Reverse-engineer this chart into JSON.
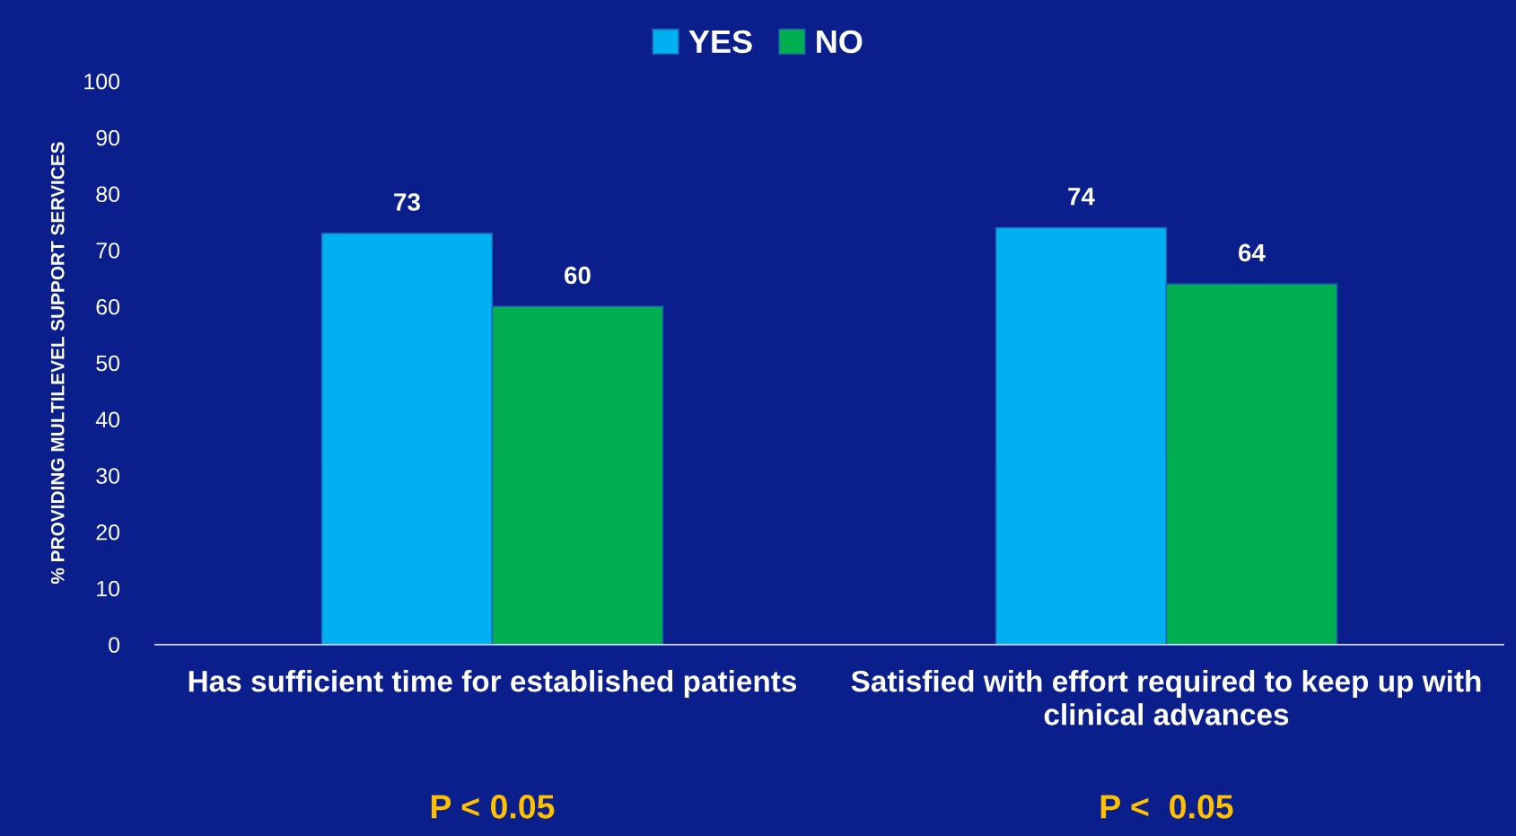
{
  "chart_data": {
    "type": "bar",
    "ylabel": "% PROVIDING MULTILEVEL SUPPORT SERVICES",
    "categories": [
      "Has sufficient time for established patients",
      "Satisfied with effort required to keep up with clinical advances"
    ],
    "series": [
      {
        "name": "YES",
        "color": "#00b0f0",
        "values": [
          73,
          74
        ]
      },
      {
        "name": "NO",
        "color": "#00b050",
        "values": [
          60,
          64
        ]
      }
    ],
    "ylim": [
      0,
      100
    ],
    "yticks": [
      0,
      10,
      20,
      30,
      40,
      50,
      60,
      70,
      80,
      90,
      100
    ],
    "data_labels": true,
    "legend": "top",
    "grid": false,
    "annotations": [
      "P < 0.05",
      "P <  0.05"
    ]
  }
}
